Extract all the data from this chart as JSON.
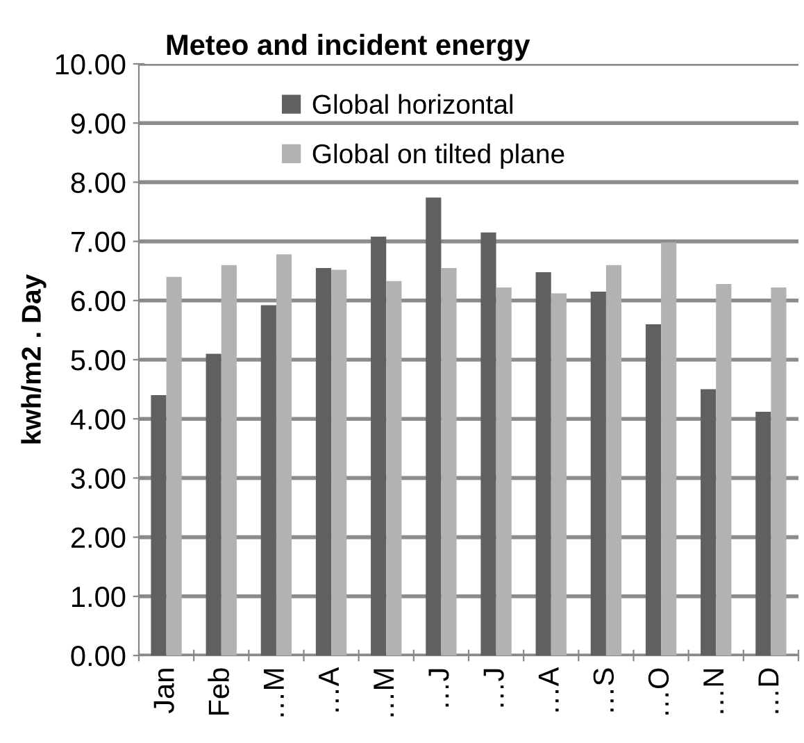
{
  "chart_data": {
    "type": "bar",
    "title": "Meteo and incident energy",
    "ylabel": "kwh/m2 . Day",
    "categories": [
      "Jan",
      "Feb",
      "…M",
      "…A",
      "…M",
      "…J",
      "…J",
      "…A",
      "…S",
      "…O",
      "…N",
      "…D"
    ],
    "series": [
      {
        "name": "Global horizontal",
        "color": "#606060",
        "values": [
          4.4,
          5.1,
          5.92,
          6.55,
          7.08,
          7.74,
          7.15,
          6.48,
          6.15,
          5.6,
          4.5,
          4.12
        ]
      },
      {
        "name": "Global on tilted plane",
        "color": "#b2b2b2",
        "values": [
          6.4,
          6.6,
          6.78,
          6.52,
          6.33,
          6.55,
          6.22,
          6.12,
          6.6,
          6.98,
          6.28,
          6.22
        ]
      }
    ],
    "ylim": [
      0,
      10
    ],
    "yticks": [
      {
        "value": 0,
        "label": "0.00"
      },
      {
        "value": 1,
        "label": "1.00"
      },
      {
        "value": 2,
        "label": "2.00"
      },
      {
        "value": 3,
        "label": "3.00"
      },
      {
        "value": 4,
        "label": "4.00"
      },
      {
        "value": 5,
        "label": "5.00"
      },
      {
        "value": 6,
        "label": "6.00"
      },
      {
        "value": 7,
        "label": "7.00"
      },
      {
        "value": 8,
        "label": "8.00"
      },
      {
        "value": 9,
        "label": "9.00"
      },
      {
        "value": 10,
        "label": "10.00"
      }
    ],
    "grid": "y",
    "legend": "top"
  }
}
